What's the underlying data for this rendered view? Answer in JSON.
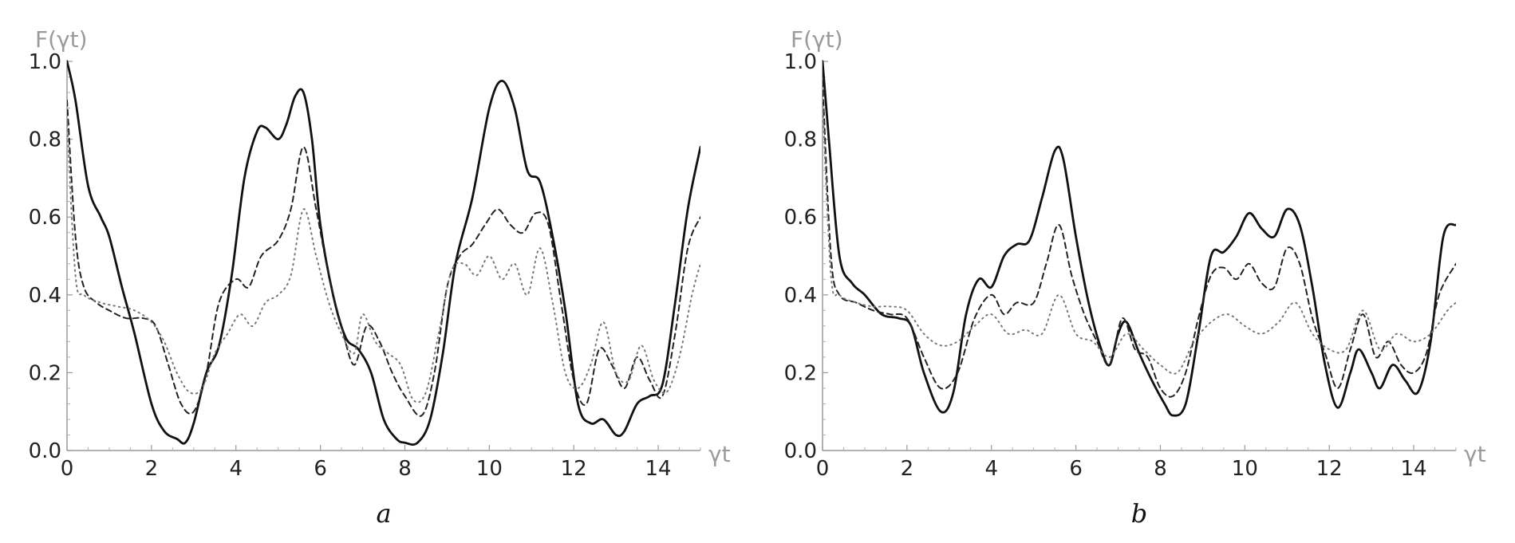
{
  "chart_data": [
    {
      "type": "line",
      "panel_label": "a",
      "ylabel": "F(γt)",
      "xlabel": "γt",
      "xlim": [
        0,
        15
      ],
      "ylim": [
        0,
        1
      ],
      "x_ticks": [
        0,
        2,
        4,
        6,
        8,
        10,
        12,
        14
      ],
      "y_ticks": [
        0.0,
        0.2,
        0.4,
        0.6,
        0.8,
        1.0
      ],
      "x_tick_labels": [
        "0",
        "2",
        "4",
        "6",
        "8",
        "10",
        "12",
        "14"
      ],
      "y_tick_labels": [
        "0.0",
        "0.2",
        "0.4",
        "0.6",
        "0.8",
        "1.0"
      ],
      "grid": false,
      "series": [
        {
          "style": "solid",
          "x": [
            0,
            0.2,
            0.5,
            0.8,
            1.0,
            1.3,
            1.6,
            2.0,
            2.3,
            2.6,
            2.8,
            3.0,
            3.3,
            3.6,
            3.9,
            4.2,
            4.5,
            4.7,
            5.0,
            5.2,
            5.4,
            5.6,
            5.8,
            6.0,
            6.3,
            6.6,
            6.9,
            7.2,
            7.5,
            7.8,
            8.0,
            8.3,
            8.6,
            8.9,
            9.2,
            9.6,
            10.0,
            10.3,
            10.6,
            10.9,
            11.2,
            11.5,
            11.8,
            12.1,
            12.4,
            12.7,
            13.0,
            13.2,
            13.5,
            13.8,
            14.1,
            14.4,
            14.7,
            15.0
          ],
          "y": [
            1.0,
            0.9,
            0.68,
            0.6,
            0.55,
            0.42,
            0.3,
            0.12,
            0.05,
            0.03,
            0.02,
            0.07,
            0.2,
            0.27,
            0.45,
            0.7,
            0.82,
            0.83,
            0.8,
            0.84,
            0.91,
            0.92,
            0.8,
            0.58,
            0.4,
            0.29,
            0.26,
            0.2,
            0.08,
            0.03,
            0.02,
            0.02,
            0.08,
            0.25,
            0.48,
            0.65,
            0.88,
            0.95,
            0.88,
            0.72,
            0.69,
            0.55,
            0.36,
            0.12,
            0.07,
            0.08,
            0.04,
            0.05,
            0.12,
            0.14,
            0.17,
            0.38,
            0.62,
            0.78
          ]
        },
        {
          "style": "dashed",
          "x": [
            0,
            0.2,
            0.4,
            0.7,
            1.0,
            1.4,
            1.8,
            2.1,
            2.4,
            2.7,
            3.0,
            3.3,
            3.6,
            4.0,
            4.3,
            4.6,
            5.0,
            5.3,
            5.6,
            5.9,
            6.2,
            6.5,
            6.8,
            7.1,
            7.4,
            7.7,
            8.0,
            8.4,
            8.7,
            9.0,
            9.3,
            9.6,
            9.9,
            10.2,
            10.5,
            10.8,
            11.1,
            11.4,
            11.7,
            12.0,
            12.3,
            12.6,
            12.9,
            13.2,
            13.5,
            13.8,
            14.1,
            14.4,
            14.7,
            15.0
          ],
          "y": [
            0.9,
            0.55,
            0.42,
            0.38,
            0.36,
            0.34,
            0.34,
            0.32,
            0.22,
            0.12,
            0.1,
            0.2,
            0.38,
            0.44,
            0.42,
            0.5,
            0.54,
            0.62,
            0.78,
            0.62,
            0.45,
            0.32,
            0.22,
            0.32,
            0.28,
            0.2,
            0.14,
            0.09,
            0.2,
            0.42,
            0.5,
            0.53,
            0.58,
            0.62,
            0.58,
            0.56,
            0.61,
            0.58,
            0.38,
            0.18,
            0.12,
            0.26,
            0.22,
            0.16,
            0.24,
            0.18,
            0.14,
            0.3,
            0.52,
            0.6
          ]
        },
        {
          "style": "dotted",
          "x": [
            0,
            0.2,
            0.4,
            0.8,
            1.2,
            1.6,
            2.0,
            2.3,
            2.6,
            2.9,
            3.2,
            3.5,
            3.8,
            4.1,
            4.4,
            4.7,
            5.0,
            5.3,
            5.6,
            5.9,
            6.2,
            6.5,
            6.8,
            7.0,
            7.3,
            7.6,
            7.9,
            8.2,
            8.5,
            8.8,
            9.1,
            9.4,
            9.7,
            10.0,
            10.3,
            10.6,
            10.9,
            11.2,
            11.5,
            11.8,
            12.1,
            12.4,
            12.7,
            13.0,
            13.3,
            13.6,
            13.9,
            14.2,
            14.5,
            14.8,
            15.0
          ],
          "y": [
            0.85,
            0.45,
            0.4,
            0.38,
            0.37,
            0.36,
            0.33,
            0.28,
            0.2,
            0.15,
            0.16,
            0.25,
            0.3,
            0.35,
            0.32,
            0.38,
            0.4,
            0.45,
            0.62,
            0.5,
            0.38,
            0.3,
            0.25,
            0.35,
            0.28,
            0.25,
            0.22,
            0.13,
            0.15,
            0.3,
            0.46,
            0.48,
            0.45,
            0.5,
            0.44,
            0.48,
            0.4,
            0.52,
            0.38,
            0.2,
            0.16,
            0.22,
            0.33,
            0.2,
            0.18,
            0.27,
            0.18,
            0.15,
            0.24,
            0.4,
            0.48
          ]
        }
      ]
    },
    {
      "type": "line",
      "panel_label": "b",
      "ylabel": "F(γt)",
      "xlabel": "γt",
      "xlim": [
        0,
        15
      ],
      "ylim": [
        0,
        1
      ],
      "x_ticks": [
        0,
        2,
        4,
        6,
        8,
        10,
        12,
        14
      ],
      "y_ticks": [
        0.0,
        0.2,
        0.4,
        0.6,
        0.8,
        1.0
      ],
      "x_tick_labels": [
        "0",
        "2",
        "4",
        "6",
        "8",
        "10",
        "12",
        "14"
      ],
      "y_tick_labels": [
        "0.0",
        "0.2",
        "0.4",
        "0.6",
        "0.8",
        "1.0"
      ],
      "grid": false,
      "series": [
        {
          "style": "solid",
          "x": [
            0,
            0.15,
            0.4,
            0.7,
            1.0,
            1.4,
            1.8,
            2.1,
            2.4,
            2.8,
            3.1,
            3.4,
            3.7,
            4.0,
            4.3,
            4.6,
            4.9,
            5.2,
            5.5,
            5.7,
            6.0,
            6.3,
            6.6,
            6.8,
            7.0,
            7.2,
            7.5,
            7.8,
            8.1,
            8.3,
            8.6,
            8.9,
            9.2,
            9.5,
            9.8,
            10.1,
            10.4,
            10.7,
            11.0,
            11.3,
            11.6,
            11.9,
            12.2,
            12.5,
            12.7,
            13.0,
            13.2,
            13.5,
            13.8,
            14.1,
            14.4,
            14.7,
            15.0
          ],
          "y": [
            1.0,
            0.8,
            0.5,
            0.43,
            0.4,
            0.35,
            0.34,
            0.32,
            0.2,
            0.1,
            0.15,
            0.35,
            0.44,
            0.42,
            0.5,
            0.53,
            0.54,
            0.65,
            0.77,
            0.75,
            0.55,
            0.38,
            0.26,
            0.22,
            0.3,
            0.33,
            0.25,
            0.18,
            0.12,
            0.09,
            0.12,
            0.3,
            0.5,
            0.51,
            0.55,
            0.61,
            0.57,
            0.55,
            0.62,
            0.58,
            0.42,
            0.22,
            0.11,
            0.2,
            0.26,
            0.2,
            0.16,
            0.22,
            0.18,
            0.15,
            0.28,
            0.55,
            0.58
          ]
        },
        {
          "style": "dashed",
          "x": [
            0,
            0.2,
            0.4,
            0.8,
            1.2,
            1.6,
            2.0,
            2.4,
            2.8,
            3.2,
            3.6,
            4.0,
            4.3,
            4.6,
            5.0,
            5.3,
            5.6,
            5.9,
            6.2,
            6.5,
            6.8,
            7.1,
            7.4,
            7.7,
            8.0,
            8.3,
            8.6,
            8.9,
            9.2,
            9.5,
            9.8,
            10.1,
            10.4,
            10.7,
            11.0,
            11.3,
            11.6,
            11.9,
            12.2,
            12.5,
            12.8,
            13.1,
            13.4,
            13.7,
            14.0,
            14.3,
            14.6,
            15.0
          ],
          "y": [
            0.95,
            0.5,
            0.4,
            0.38,
            0.36,
            0.35,
            0.34,
            0.24,
            0.16,
            0.2,
            0.34,
            0.4,
            0.35,
            0.38,
            0.38,
            0.48,
            0.58,
            0.45,
            0.35,
            0.28,
            0.22,
            0.34,
            0.26,
            0.24,
            0.16,
            0.14,
            0.2,
            0.34,
            0.45,
            0.47,
            0.44,
            0.48,
            0.43,
            0.42,
            0.52,
            0.48,
            0.34,
            0.25,
            0.16,
            0.26,
            0.35,
            0.24,
            0.28,
            0.22,
            0.2,
            0.25,
            0.4,
            0.48
          ]
        },
        {
          "style": "dotted",
          "x": [
            0,
            0.2,
            0.4,
            0.8,
            1.2,
            1.6,
            2.0,
            2.4,
            2.8,
            3.2,
            3.6,
            4.0,
            4.4,
            4.8,
            5.2,
            5.6,
            6.0,
            6.4,
            6.8,
            7.2,
            7.6,
            8.0,
            8.4,
            8.8,
            9.2,
            9.6,
            10.0,
            10.4,
            10.8,
            11.2,
            11.6,
            12.0,
            12.4,
            12.8,
            13.2,
            13.6,
            14.0,
            14.4,
            14.8,
            15.0
          ],
          "y": [
            0.9,
            0.45,
            0.4,
            0.38,
            0.37,
            0.37,
            0.36,
            0.3,
            0.27,
            0.28,
            0.32,
            0.35,
            0.3,
            0.31,
            0.3,
            0.4,
            0.3,
            0.28,
            0.24,
            0.3,
            0.26,
            0.22,
            0.2,
            0.28,
            0.33,
            0.35,
            0.32,
            0.3,
            0.33,
            0.38,
            0.3,
            0.26,
            0.26,
            0.36,
            0.26,
            0.3,
            0.28,
            0.3,
            0.36,
            0.38
          ]
        }
      ]
    }
  ]
}
